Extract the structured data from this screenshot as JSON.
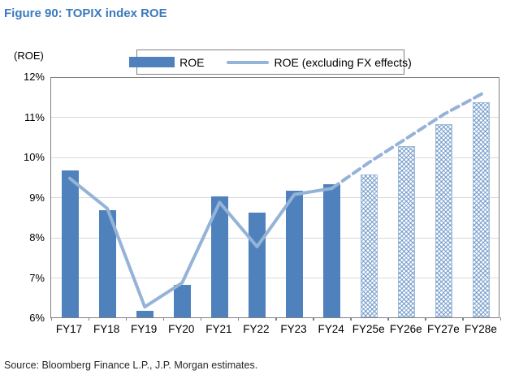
{
  "title": "Figure 90: TOPIX index ROE",
  "axis_unit_label": "(ROE)",
  "legend": {
    "bar_label": "ROE",
    "line_label": "ROE (excluding FX effects)"
  },
  "source": "Source: Bloomberg Finance L.P., J.P. Morgan estimates.",
  "colors": {
    "title_blue": "#3b7abf",
    "bar_blue": "#4f81bd",
    "line_blue": "#95b3d7",
    "gridline": "#d9d9d9",
    "axis_border": "#808080"
  },
  "chart_data": {
    "type": "bar",
    "subtype": "bar-line-combo",
    "categories": [
      "FY17",
      "FY18",
      "FY19",
      "FY20",
      "FY21",
      "FY22",
      "FY23",
      "FY24",
      "FY25e",
      "FY26e",
      "FY27e",
      "FY28e"
    ],
    "series": [
      {
        "name": "ROE",
        "type": "bar",
        "values": [
          9.7,
          8.7,
          6.2,
          6.85,
          9.05,
          8.65,
          9.2,
          9.35,
          9.6,
          10.3,
          10.85,
          11.4
        ],
        "forecast_from_index": 8,
        "forecast_style": "hatched"
      },
      {
        "name": "ROE (excluding FX effects)",
        "type": "line",
        "values": [
          9.5,
          8.75,
          6.3,
          6.9,
          8.9,
          7.8,
          9.1,
          9.25,
          9.9,
          10.5,
          11.1,
          11.6
        ],
        "forecast_from_index": 8,
        "forecast_style": "dashed"
      }
    ],
    "ylim": [
      6,
      12
    ],
    "ytick_step": 1,
    "yticks": [
      "12%",
      "11%",
      "10%",
      "9%",
      "8%",
      "7%",
      "6%"
    ],
    "xlabel": "",
    "ylabel": "(ROE)",
    "grid": true,
    "legend_position": "top-center"
  }
}
